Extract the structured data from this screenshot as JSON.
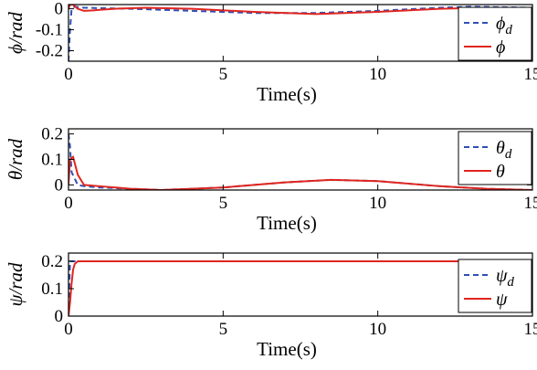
{
  "colors": {
    "desired": "#2f4fb3",
    "actual": "#e0261f",
    "axis": "#000000"
  },
  "chart_data": [
    {
      "type": "line",
      "ylabel": "ϕ/rad",
      "xlabel": "Time(s)",
      "xlim": [
        0,
        15
      ],
      "ylim": [
        -0.25,
        0.02
      ],
      "xticks": [
        "0",
        "5",
        "10",
        "15"
      ],
      "yticks": [
        "0",
        "-0.1",
        "-0.2"
      ],
      "legend": {
        "position": "top-right",
        "entries": [
          "ϕd",
          "ϕ"
        ]
      },
      "series": [
        {
          "name": "ϕd",
          "style": "dashed",
          "x": [
            0,
            0.05,
            0.1,
            0.2,
            0.5,
            1,
            2,
            4,
            6,
            8,
            10,
            12,
            13,
            15
          ],
          "y": [
            -0.25,
            -0.1,
            0.0,
            0.01,
            0.005,
            0.003,
            0.0,
            -0.01,
            -0.02,
            -0.02,
            -0.01,
            0.005,
            0.01,
            0.005
          ]
        },
        {
          "name": "ϕ",
          "style": "solid",
          "x": [
            0,
            0.05,
            0.15,
            0.3,
            0.5,
            0.8,
            1,
            1.5,
            2.5,
            4,
            6,
            8,
            10,
            12,
            13.5,
            15
          ],
          "y": [
            0.0,
            0.02,
            0.02,
            0.0,
            -0.01,
            -0.008,
            -0.005,
            0.0,
            0.005,
            0.0,
            -0.015,
            -0.025,
            -0.015,
            0.0,
            0.005,
            0.0
          ]
        }
      ]
    },
    {
      "type": "line",
      "ylabel": "θ/rad",
      "xlabel": "Time(s)",
      "xlim": [
        0,
        15
      ],
      "ylim": [
        -0.02,
        0.22
      ],
      "xticks": [
        "0",
        "5",
        "10",
        "15"
      ],
      "yticks": [
        "0",
        "0.1",
        "0.2"
      ],
      "legend": {
        "position": "top-right",
        "entries": [
          "θd",
          "θ"
        ]
      },
      "series": [
        {
          "name": "θd",
          "style": "dashed",
          "x": [
            0,
            0.05,
            0.1,
            0.3,
            0.5,
            1,
            2,
            3,
            5,
            7,
            8.5,
            10,
            12,
            13.5,
            15
          ],
          "y": [
            0.2,
            0.15,
            0.05,
            0.0,
            -0.005,
            -0.01,
            -0.015,
            -0.02,
            -0.01,
            0.01,
            0.02,
            0.015,
            -0.005,
            -0.015,
            -0.02
          ]
        },
        {
          "name": "θ",
          "style": "solid",
          "x": [
            0,
            0.05,
            0.15,
            0.3,
            0.5,
            1,
            2,
            3,
            5,
            7,
            8.5,
            10,
            12,
            13.5,
            15
          ],
          "y": [
            0.0,
            0.1,
            0.11,
            0.04,
            0.0,
            -0.005,
            -0.015,
            -0.02,
            -0.01,
            0.01,
            0.02,
            0.015,
            -0.005,
            -0.015,
            -0.02
          ]
        }
      ]
    },
    {
      "type": "line",
      "ylabel": "ψ/rad",
      "xlabel": "Time(s)",
      "xlim": [
        0,
        15
      ],
      "ylim": [
        0,
        0.23
      ],
      "xticks": [
        "0",
        "5",
        "10",
        "15"
      ],
      "yticks": [
        "0",
        "0.1",
        "0.2"
      ],
      "legend": {
        "position": "right",
        "entries": [
          "ψd",
          "ψ"
        ]
      },
      "series": [
        {
          "name": "ψd",
          "style": "dashed",
          "x": [
            0,
            0.05,
            0.1,
            15
          ],
          "y": [
            0.0,
            0.2,
            0.2,
            0.2
          ]
        },
        {
          "name": "ψ",
          "style": "solid",
          "x": [
            0,
            0.05,
            0.1,
            0.15,
            0.2,
            0.3,
            0.5,
            15
          ],
          "y": [
            0.0,
            0.05,
            0.12,
            0.17,
            0.19,
            0.2,
            0.2,
            0.2
          ]
        }
      ]
    }
  ]
}
